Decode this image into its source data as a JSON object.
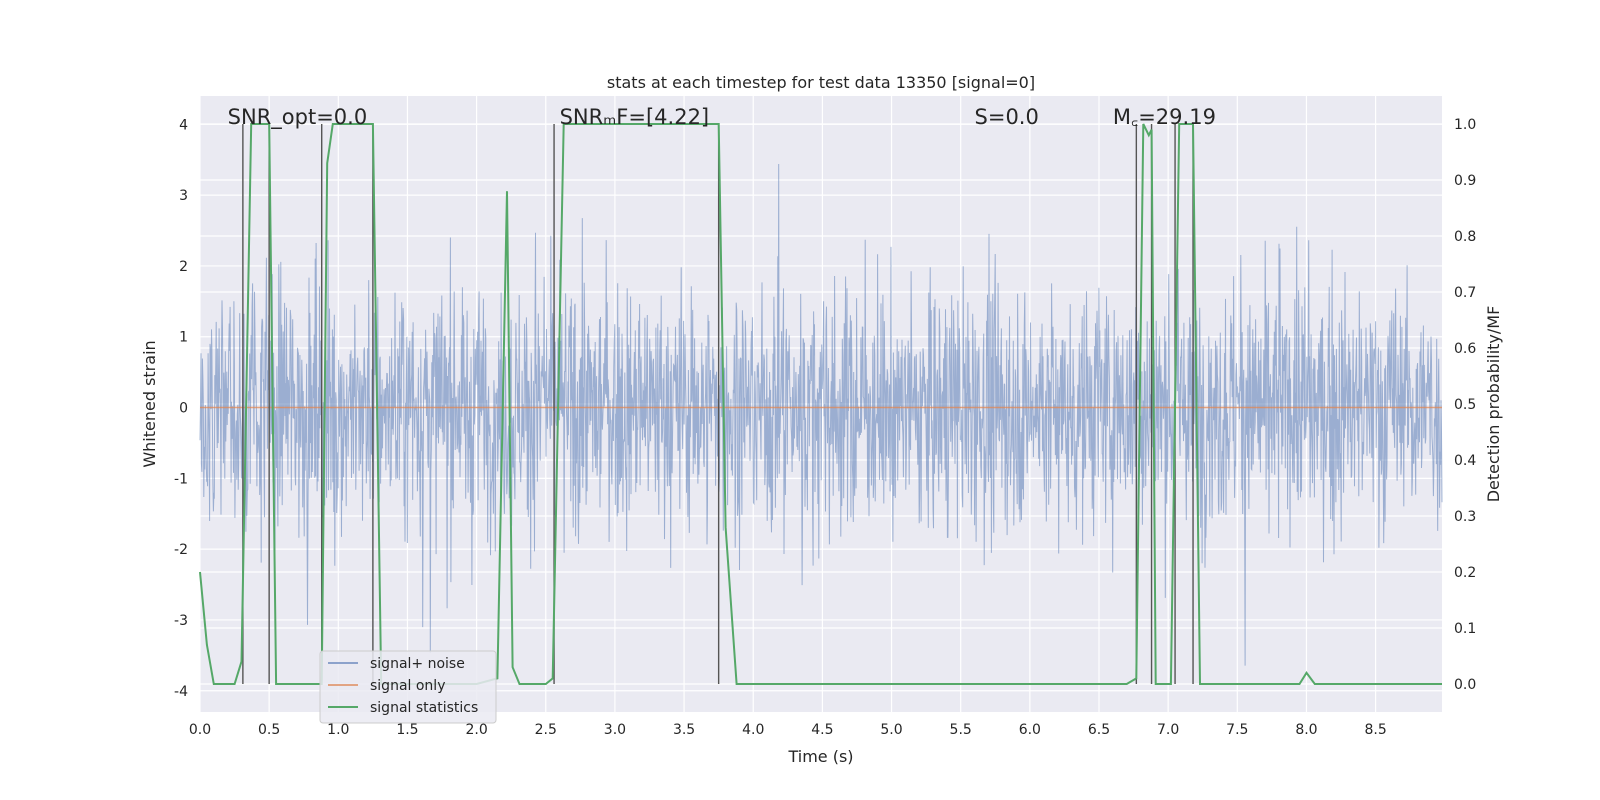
{
  "chart_data": {
    "type": "line",
    "title": "stats at each timestep for test data 13350 [signal=0]",
    "xlabel": "Time (s)",
    "ylabel": "Whitened strain",
    "y2label": "Detection probability/MF",
    "xlim": [
      0.0,
      8.98
    ],
    "ylim": [
      -4.3,
      4.4
    ],
    "y2lim": [
      -0.05,
      1.05
    ],
    "xticks": [
      "0.0",
      "0.5",
      "1.0",
      "1.5",
      "2.0",
      "2.5",
      "3.0",
      "3.5",
      "4.0",
      "4.5",
      "5.0",
      "5.5",
      "6.0",
      "6.5",
      "7.0",
      "7.5",
      "8.0",
      "8.5"
    ],
    "yticks": [
      "4",
      "3",
      "2",
      "1",
      "0",
      "-1",
      "-2",
      "-3",
      "-4"
    ],
    "y2ticks": [
      "1.0",
      "0.9",
      "0.8",
      "0.7",
      "0.6",
      "0.5",
      "0.4",
      "0.3",
      "0.2",
      "0.1",
      "0.0"
    ],
    "grid": true,
    "legend_position": "lower-left",
    "annotations": [
      {
        "text": "SNR_opt=0.0",
        "x": 0.2
      },
      {
        "text": "SNRₘF=[4.22]",
        "x": 2.6
      },
      {
        "text": "S=0.0",
        "x": 5.6
      },
      {
        "text": "M꜀=29.19",
        "x": 6.6
      }
    ],
    "series": [
      {
        "name": "signal+ noise",
        "color": "#4c72b0",
        "note": "whitened strain noise, amplitude roughly ±1.5 with peaks to ±4"
      },
      {
        "name": "signal only",
        "color": "#dd8452",
        "values_note": "flat at 0"
      },
      {
        "name": "signal statistics",
        "color": "#55a868",
        "axis": "right",
        "x": [
          0.0,
          0.05,
          0.1,
          0.15,
          0.25,
          0.3,
          0.37,
          0.4,
          0.45,
          0.5,
          0.55,
          0.6,
          0.7,
          0.8,
          0.88,
          0.92,
          0.96,
          1.02,
          1.2,
          1.25,
          1.31,
          1.36,
          1.5,
          2.0,
          2.15,
          2.22,
          2.26,
          2.31,
          2.5,
          2.55,
          2.63,
          3.7,
          3.75,
          3.8,
          3.88,
          4.0,
          5.0,
          6.0,
          6.7,
          6.77,
          6.82,
          6.86,
          6.88,
          6.91,
          6.96,
          7.02,
          7.08,
          7.13,
          7.18,
          7.23,
          7.5,
          7.95,
          8.0,
          8.06,
          8.5,
          8.98
        ],
        "values": [
          0.2,
          0.07,
          0.0,
          0.0,
          0.0,
          0.04,
          1.0,
          1.0,
          1.0,
          1.0,
          0.0,
          0.0,
          0.0,
          0.0,
          0.0,
          0.93,
          1.0,
          1.0,
          1.0,
          1.0,
          0.0,
          0.0,
          0.0,
          0.0,
          0.01,
          0.88,
          0.03,
          0.0,
          0.0,
          0.01,
          1.0,
          1.0,
          1.0,
          0.28,
          0.0,
          0.0,
          0.0,
          0.0,
          0.0,
          0.01,
          1.0,
          0.98,
          0.99,
          0.0,
          0.0,
          0.0,
          1.0,
          1.0,
          1.0,
          0.0,
          0.0,
          0.0,
          0.02,
          0.0,
          0.0,
          0.0
        ]
      }
    ],
    "vlines_x": [
      0.31,
      0.5,
      0.88,
      1.25,
      2.56,
      3.75,
      6.77,
      6.88,
      7.05,
      7.18
    ],
    "legend": [
      {
        "label": "signal+ noise",
        "color": "#4c72b0"
      },
      {
        "label": "signal only",
        "color": "#dd8452"
      },
      {
        "label": "signal statistics",
        "color": "#55a868"
      }
    ]
  }
}
